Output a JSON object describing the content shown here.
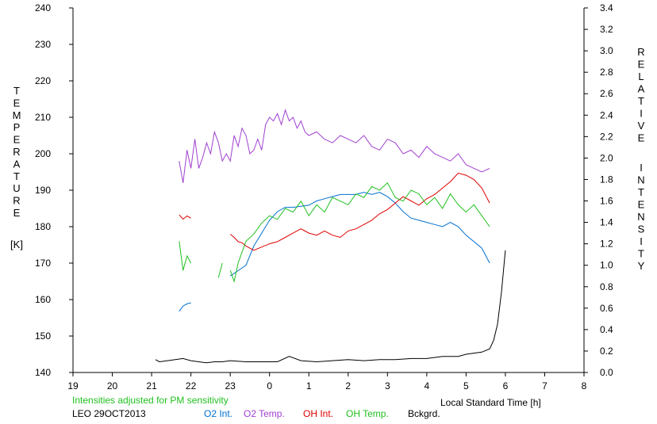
{
  "chart_data": {
    "type": "line",
    "left_axis": {
      "label_letters": [
        "T",
        "E",
        "M",
        "P",
        "E",
        "R",
        "A",
        "T",
        "U",
        "R",
        "E"
      ],
      "unit": "[K]",
      "ylim": [
        140,
        240
      ],
      "ticks": [
        140,
        150,
        160,
        170,
        180,
        190,
        200,
        210,
        220,
        230,
        240
      ]
    },
    "right_axis": {
      "label_letters_1": [
        "R",
        "E",
        "L",
        "A",
        "T",
        "I",
        "V",
        "E"
      ],
      "label_letters_2": [
        "I",
        "N",
        "T",
        "E",
        "N",
        "S",
        "I",
        "T",
        "Y"
      ],
      "ylim": [
        0.0,
        3.4
      ],
      "ticks": [
        "0.0",
        "0.2",
        "0.4",
        "0.6",
        "0.8",
        "1.0",
        "1.2",
        "1.4",
        "1.6",
        "1.8",
        "2.0",
        "2.2",
        "2.4",
        "2.6",
        "2.8",
        "3.0",
        "3.2",
        "3.4"
      ]
    },
    "x_axis": {
      "label": "Local Standard Time [h]",
      "xlim": [
        19,
        32
      ],
      "tick_labels": [
        "19",
        "20",
        "21",
        "22",
        "23",
        "0",
        "1",
        "2",
        "3",
        "4",
        "5",
        "6",
        "7",
        "8"
      ]
    },
    "note": "Intensities adjusted for PM sensitivity",
    "station_date": "LEO 29OCT2013",
    "colors": {
      "O2 Int.": "#0070d0",
      "O2 Temp.": "#a040d0",
      "OH Int.": "#e00000",
      "OH Temp.": "#20c020",
      "Bckgrd.": "#000000",
      "note": "#20c020"
    },
    "series": [
      {
        "name": "O2 Int.",
        "axis": "right",
        "segments": [
          [
            [
              21.7,
              0.57
            ],
            [
              21.8,
              0.62
            ],
            [
              21.9,
              0.64
            ],
            [
              22.0,
              0.65
            ]
          ],
          [
            [
              23.0,
              0.9
            ],
            [
              23.2,
              0.95
            ],
            [
              23.4,
              1.0
            ],
            [
              23.6,
              1.18
            ],
            [
              23.8,
              1.3
            ],
            [
              24.0,
              1.42
            ],
            [
              24.2,
              1.5
            ],
            [
              24.4,
              1.54
            ],
            [
              24.6,
              1.54
            ],
            [
              24.8,
              1.55
            ],
            [
              25.0,
              1.56
            ],
            [
              25.2,
              1.6
            ],
            [
              25.4,
              1.62
            ],
            [
              25.6,
              1.64
            ],
            [
              25.8,
              1.66
            ],
            [
              26.0,
              1.66
            ],
            [
              26.2,
              1.66
            ],
            [
              26.4,
              1.68
            ],
            [
              26.6,
              1.66
            ],
            [
              26.8,
              1.68
            ],
            [
              27.0,
              1.64
            ],
            [
              27.2,
              1.58
            ],
            [
              27.4,
              1.5
            ],
            [
              27.6,
              1.44
            ],
            [
              27.8,
              1.42
            ],
            [
              28.0,
              1.4
            ],
            [
              28.2,
              1.38
            ],
            [
              28.4,
              1.36
            ],
            [
              28.6,
              1.4
            ],
            [
              28.8,
              1.36
            ],
            [
              29.0,
              1.28
            ],
            [
              29.2,
              1.22
            ],
            [
              29.4,
              1.16
            ],
            [
              29.6,
              1.02
            ]
          ]
        ]
      },
      {
        "name": "O2 Temp.",
        "axis": "left",
        "segments": [
          [
            [
              21.7,
              198
            ],
            [
              21.8,
              192
            ],
            [
              21.9,
              201
            ],
            [
              22.0,
              196
            ],
            [
              22.1,
              204
            ],
            [
              22.2,
              196
            ],
            [
              22.3,
              199
            ],
            [
              22.4,
              203
            ],
            [
              22.5,
              200
            ],
            [
              22.6,
              206
            ],
            [
              22.7,
              203
            ],
            [
              22.8,
              198
            ],
            [
              22.9,
              200
            ],
            [
              23.0,
              198
            ],
            [
              23.1,
              205
            ],
            [
              23.2,
              202
            ],
            [
              23.3,
              207
            ],
            [
              23.4,
              205
            ],
            [
              23.5,
              200
            ],
            [
              23.6,
              201
            ],
            [
              23.7,
              204
            ],
            [
              23.8,
              201
            ],
            [
              23.9,
              208
            ],
            [
              24.0,
              210
            ],
            [
              24.1,
              209
            ],
            [
              24.2,
              211
            ],
            [
              24.3,
              208
            ],
            [
              24.4,
              212
            ],
            [
              24.5,
              209
            ],
            [
              24.6,
              210
            ],
            [
              24.7,
              207
            ],
            [
              24.8,
              209
            ],
            [
              24.9,
              206
            ],
            [
              25.0,
              205
            ],
            [
              25.2,
              206
            ],
            [
              25.4,
              204
            ],
            [
              25.6,
              203
            ],
            [
              25.8,
              205
            ],
            [
              26.0,
              204
            ],
            [
              26.2,
              203
            ],
            [
              26.4,
              205
            ],
            [
              26.6,
              202
            ],
            [
              26.8,
              201
            ],
            [
              27.0,
              204
            ],
            [
              27.2,
              203
            ],
            [
              27.4,
              200
            ],
            [
              27.6,
              201
            ],
            [
              27.8,
              199
            ],
            [
              28.0,
              202
            ],
            [
              28.2,
              200
            ],
            [
              28.4,
              199
            ],
            [
              28.6,
              198
            ],
            [
              28.8,
              200
            ],
            [
              29.0,
              197
            ],
            [
              29.2,
              196
            ],
            [
              29.4,
              195
            ],
            [
              29.6,
              196
            ]
          ]
        ]
      },
      {
        "name": "OH Int.",
        "axis": "right",
        "segments": [
          [
            [
              21.7,
              1.47
            ],
            [
              21.8,
              1.43
            ],
            [
              21.9,
              1.46
            ],
            [
              22.0,
              1.44
            ]
          ],
          [
            [
              23.0,
              1.29
            ],
            [
              23.1,
              1.26
            ],
            [
              23.2,
              1.22
            ],
            [
              23.3,
              1.21
            ],
            [
              23.4,
              1.18
            ],
            [
              23.6,
              1.14
            ],
            [
              23.8,
              1.17
            ],
            [
              24.0,
              1.2
            ],
            [
              24.2,
              1.22
            ],
            [
              24.4,
              1.26
            ],
            [
              24.6,
              1.3
            ],
            [
              24.8,
              1.34
            ],
            [
              25.0,
              1.3
            ],
            [
              25.2,
              1.28
            ],
            [
              25.4,
              1.32
            ],
            [
              25.6,
              1.28
            ],
            [
              25.8,
              1.26
            ],
            [
              26.0,
              1.32
            ],
            [
              26.2,
              1.34
            ],
            [
              26.4,
              1.38
            ],
            [
              26.6,
              1.42
            ],
            [
              26.8,
              1.48
            ],
            [
              27.0,
              1.52
            ],
            [
              27.2,
              1.58
            ],
            [
              27.4,
              1.64
            ],
            [
              27.6,
              1.6
            ],
            [
              27.8,
              1.56
            ],
            [
              28.0,
              1.62
            ],
            [
              28.2,
              1.66
            ],
            [
              28.4,
              1.72
            ],
            [
              28.6,
              1.78
            ],
            [
              28.8,
              1.86
            ],
            [
              29.0,
              1.84
            ],
            [
              29.2,
              1.8
            ],
            [
              29.4,
              1.72
            ],
            [
              29.6,
              1.58
            ]
          ]
        ]
      },
      {
        "name": "OH Temp.",
        "axis": "left",
        "segments": [
          [
            [
              21.7,
              176
            ],
            [
              21.8,
              168
            ],
            [
              21.9,
              172
            ],
            [
              22.0,
              170
            ]
          ],
          [
            [
              22.7,
              166
            ],
            [
              22.8,
              170
            ]
          ],
          [
            [
              23.0,
              168
            ],
            [
              23.1,
              165
            ],
            [
              23.2,
              170
            ],
            [
              23.3,
              173
            ],
            [
              23.4,
              176
            ],
            [
              23.6,
              178
            ],
            [
              23.8,
              181
            ],
            [
              24.0,
              183
            ],
            [
              24.2,
              182
            ],
            [
              24.4,
              185
            ],
            [
              24.6,
              184
            ],
            [
              24.8,
              187
            ],
            [
              25.0,
              183
            ],
            [
              25.2,
              186
            ],
            [
              25.4,
              184
            ],
            [
              25.6,
              188
            ],
            [
              25.8,
              187
            ],
            [
              26.0,
              186
            ],
            [
              26.2,
              189
            ],
            [
              26.4,
              188
            ],
            [
              26.6,
              191
            ],
            [
              26.8,
              190
            ],
            [
              27.0,
              192
            ],
            [
              27.2,
              188
            ],
            [
              27.4,
              187
            ],
            [
              27.6,
              190
            ],
            [
              27.8,
              189
            ],
            [
              28.0,
              186
            ],
            [
              28.2,
              188
            ],
            [
              28.4,
              185
            ],
            [
              28.6,
              189
            ],
            [
              28.8,
              186
            ],
            [
              29.0,
              184
            ],
            [
              29.2,
              186
            ],
            [
              29.4,
              183
            ],
            [
              29.6,
              180
            ]
          ]
        ]
      },
      {
        "name": "Bckgrd.",
        "axis": "right",
        "segments": [
          [
            [
              21.1,
              0.12
            ],
            [
              21.2,
              0.1
            ],
            [
              21.4,
              0.11
            ],
            [
              21.6,
              0.12
            ],
            [
              21.8,
              0.13
            ],
            [
              22.0,
              0.11
            ],
            [
              22.2,
              0.1
            ],
            [
              22.4,
              0.09
            ],
            [
              22.6,
              0.1
            ],
            [
              22.8,
              0.1
            ],
            [
              23.0,
              0.11
            ],
            [
              23.4,
              0.1
            ],
            [
              23.8,
              0.1
            ],
            [
              24.2,
              0.1
            ],
            [
              24.5,
              0.15
            ],
            [
              24.8,
              0.11
            ],
            [
              25.2,
              0.1
            ],
            [
              25.6,
              0.11
            ],
            [
              26.0,
              0.12
            ],
            [
              26.4,
              0.11
            ],
            [
              26.8,
              0.12
            ],
            [
              27.2,
              0.12
            ],
            [
              27.6,
              0.13
            ],
            [
              28.0,
              0.13
            ],
            [
              28.4,
              0.15
            ],
            [
              28.8,
              0.15
            ],
            [
              29.0,
              0.17
            ],
            [
              29.2,
              0.18
            ],
            [
              29.4,
              0.19
            ],
            [
              29.6,
              0.22
            ],
            [
              29.7,
              0.3
            ],
            [
              29.8,
              0.45
            ],
            [
              29.9,
              0.75
            ],
            [
              30.0,
              1.14
            ]
          ]
        ]
      }
    ]
  }
}
